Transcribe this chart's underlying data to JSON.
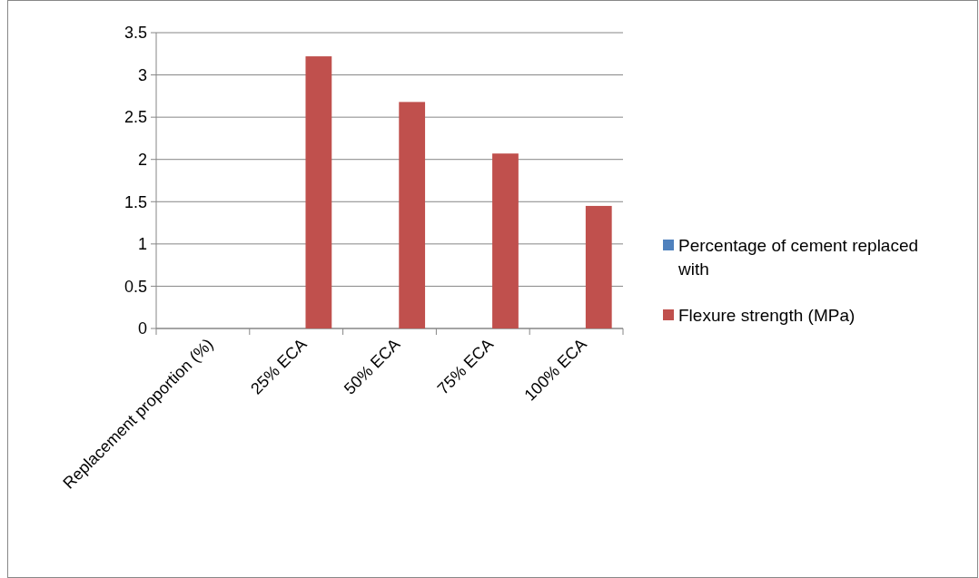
{
  "chart_data": {
    "type": "bar",
    "categories": [
      "Replacement proportion (%)",
      "25% ECA",
      "50% ECA",
      "75% ECA",
      "100% ECA"
    ],
    "series": [
      {
        "name": "Percentage of cement replaced with",
        "color": "#4f81bd",
        "values": [
          null,
          null,
          null,
          null,
          null
        ]
      },
      {
        "name": "Flexure strength (MPa)",
        "color": "#c0504d",
        "values": [
          null,
          3.22,
          2.68,
          2.07,
          1.45
        ]
      }
    ],
    "ylim": [
      0,
      3.5
    ],
    "yticks": [
      0,
      0.5,
      1,
      1.5,
      2,
      2.5,
      3,
      3.5
    ],
    "grid": "y",
    "legend": "right"
  }
}
